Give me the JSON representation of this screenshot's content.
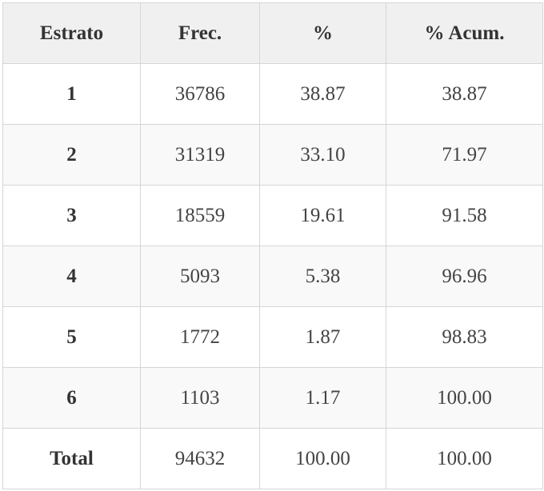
{
  "table": {
    "headers": [
      "Estrato",
      "Frec.",
      "%",
      "% Acum."
    ],
    "rows": [
      {
        "estrato": "1",
        "frec": "36786",
        "pct": "38.87",
        "acum": "38.87"
      },
      {
        "estrato": "2",
        "frec": "31319",
        "pct": "33.10",
        "acum": "71.97"
      },
      {
        "estrato": "3",
        "frec": "18559",
        "pct": "19.61",
        "acum": "91.58"
      },
      {
        "estrato": "4",
        "frec": "5093",
        "pct": "5.38",
        "acum": "96.96"
      },
      {
        "estrato": "5",
        "frec": "1772",
        "pct": "1.87",
        "acum": "98.83"
      },
      {
        "estrato": "6",
        "frec": "1103",
        "pct": "1.17",
        "acum": "100.00"
      },
      {
        "estrato": "Total",
        "frec": "94632",
        "pct": "100.00",
        "acum": "100.00"
      }
    ]
  },
  "colors": {
    "header_bg": "#f0f0f0",
    "stripe_bg": "#f9f9f9",
    "border": "#d6d6d6"
  }
}
